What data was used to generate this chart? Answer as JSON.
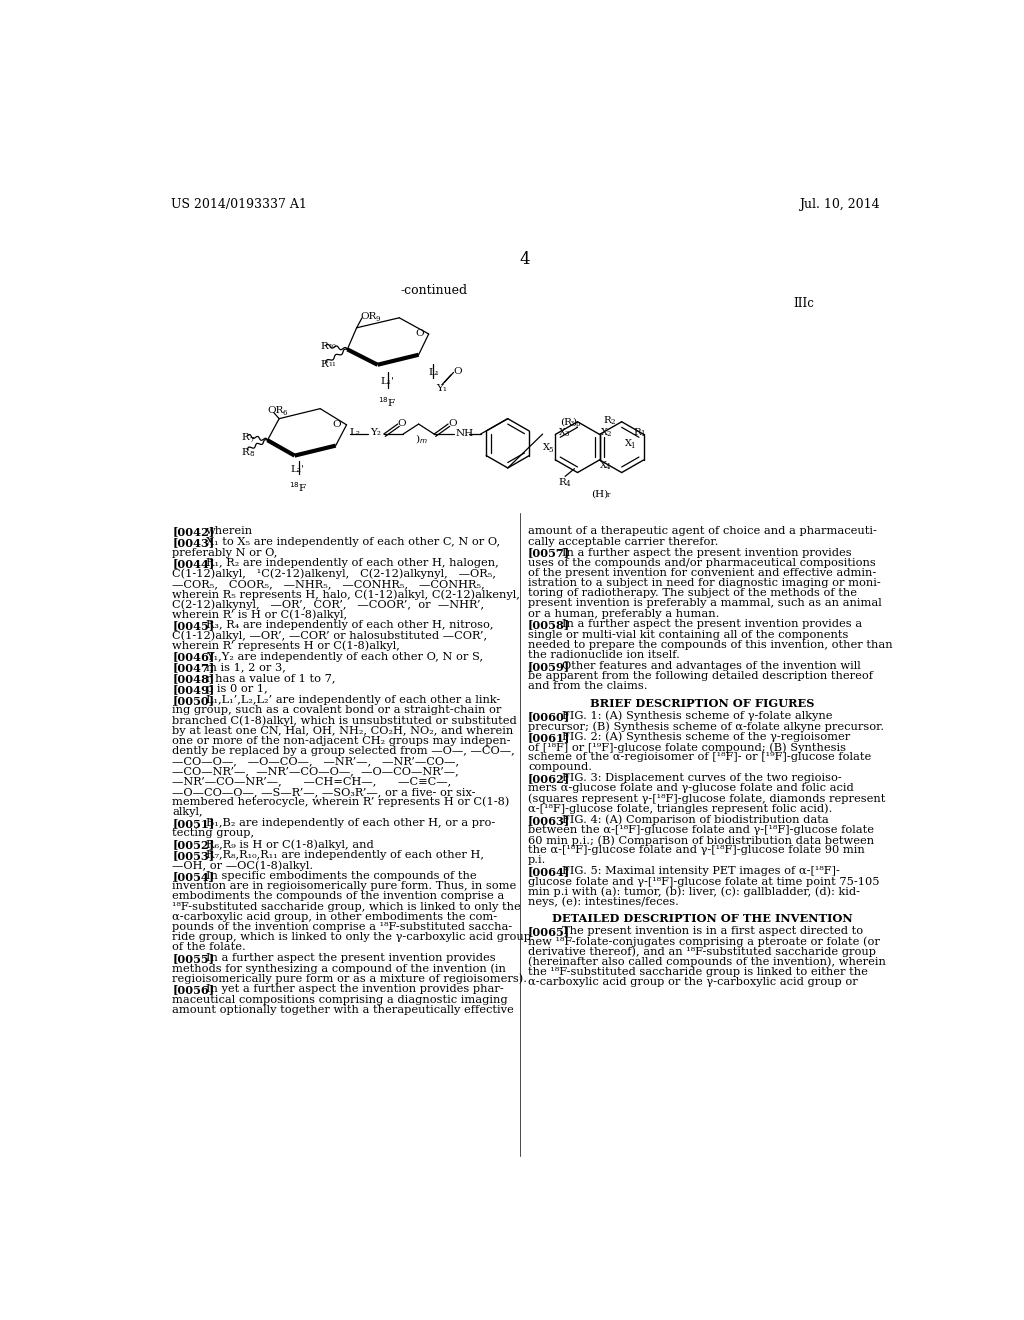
{
  "header_left": "US 2014/0193337 A1",
  "header_right": "Jul. 10, 2014",
  "page_number": "4",
  "continued_label": "-continued",
  "structure_label": "IIIc",
  "bg_color": "#ffffff",
  "text_color": "#000000"
}
